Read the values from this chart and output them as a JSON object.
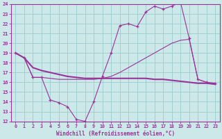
{
  "background_color": "#cce8e8",
  "grid_color": "#99cccc",
  "line_color": "#993399",
  "xlabel": "Windchill (Refroidissement éolien,°C)",
  "xlim": [
    -0.5,
    23.5
  ],
  "ylim": [
    12,
    24
  ],
  "yticks": [
    12,
    13,
    14,
    15,
    16,
    17,
    18,
    19,
    20,
    21,
    22,
    23,
    24
  ],
  "xticks": [
    0,
    1,
    2,
    3,
    4,
    5,
    6,
    7,
    8,
    9,
    10,
    11,
    12,
    13,
    14,
    15,
    16,
    17,
    18,
    19,
    20,
    21,
    22,
    23
  ],
  "series": [
    {
      "x": [
        0,
        1,
        2,
        3,
        4,
        5,
        6,
        7,
        8,
        9,
        10,
        11,
        12,
        13,
        14,
        15,
        16,
        17,
        18,
        19,
        20,
        21,
        22,
        23
      ],
      "y": [
        19.0,
        18.5,
        16.5,
        16.5,
        14.2,
        13.9,
        13.5,
        12.2,
        12.0,
        14.0,
        16.6,
        19.0,
        21.8,
        22.0,
        21.7,
        23.2,
        23.8,
        23.5,
        23.8,
        24.2,
        20.5,
        16.3,
        16.0,
        15.9
      ]
    },
    {
      "x": [
        0,
        1,
        2,
        3,
        4,
        5,
        6,
        7,
        8,
        9,
        10,
        11,
        12,
        13,
        14,
        15,
        16,
        17,
        18,
        19,
        20,
        21,
        22,
        23
      ],
      "y": [
        19.0,
        18.5,
        17.5,
        17.2,
        17.0,
        16.8,
        16.6,
        16.5,
        16.4,
        16.4,
        16.4,
        16.4,
        16.4,
        16.4,
        16.4,
        16.4,
        16.3,
        16.3,
        16.2,
        16.1,
        16.0,
        15.9,
        15.9,
        15.8
      ]
    },
    {
      "x": [
        0,
        1,
        2,
        3,
        4,
        5,
        6,
        7,
        8,
        9,
        10,
        11,
        12,
        13,
        14,
        15,
        16,
        17,
        18,
        19,
        20,
        21,
        22,
        23
      ],
      "y": [
        19.0,
        18.5,
        16.5,
        16.5,
        16.4,
        16.3,
        16.3,
        16.3,
        16.3,
        16.3,
        16.4,
        16.6,
        17.0,
        17.5,
        18.0,
        18.5,
        19.0,
        19.5,
        20.0,
        20.3,
        20.4,
        16.3,
        16.0,
        15.8
      ]
    }
  ]
}
